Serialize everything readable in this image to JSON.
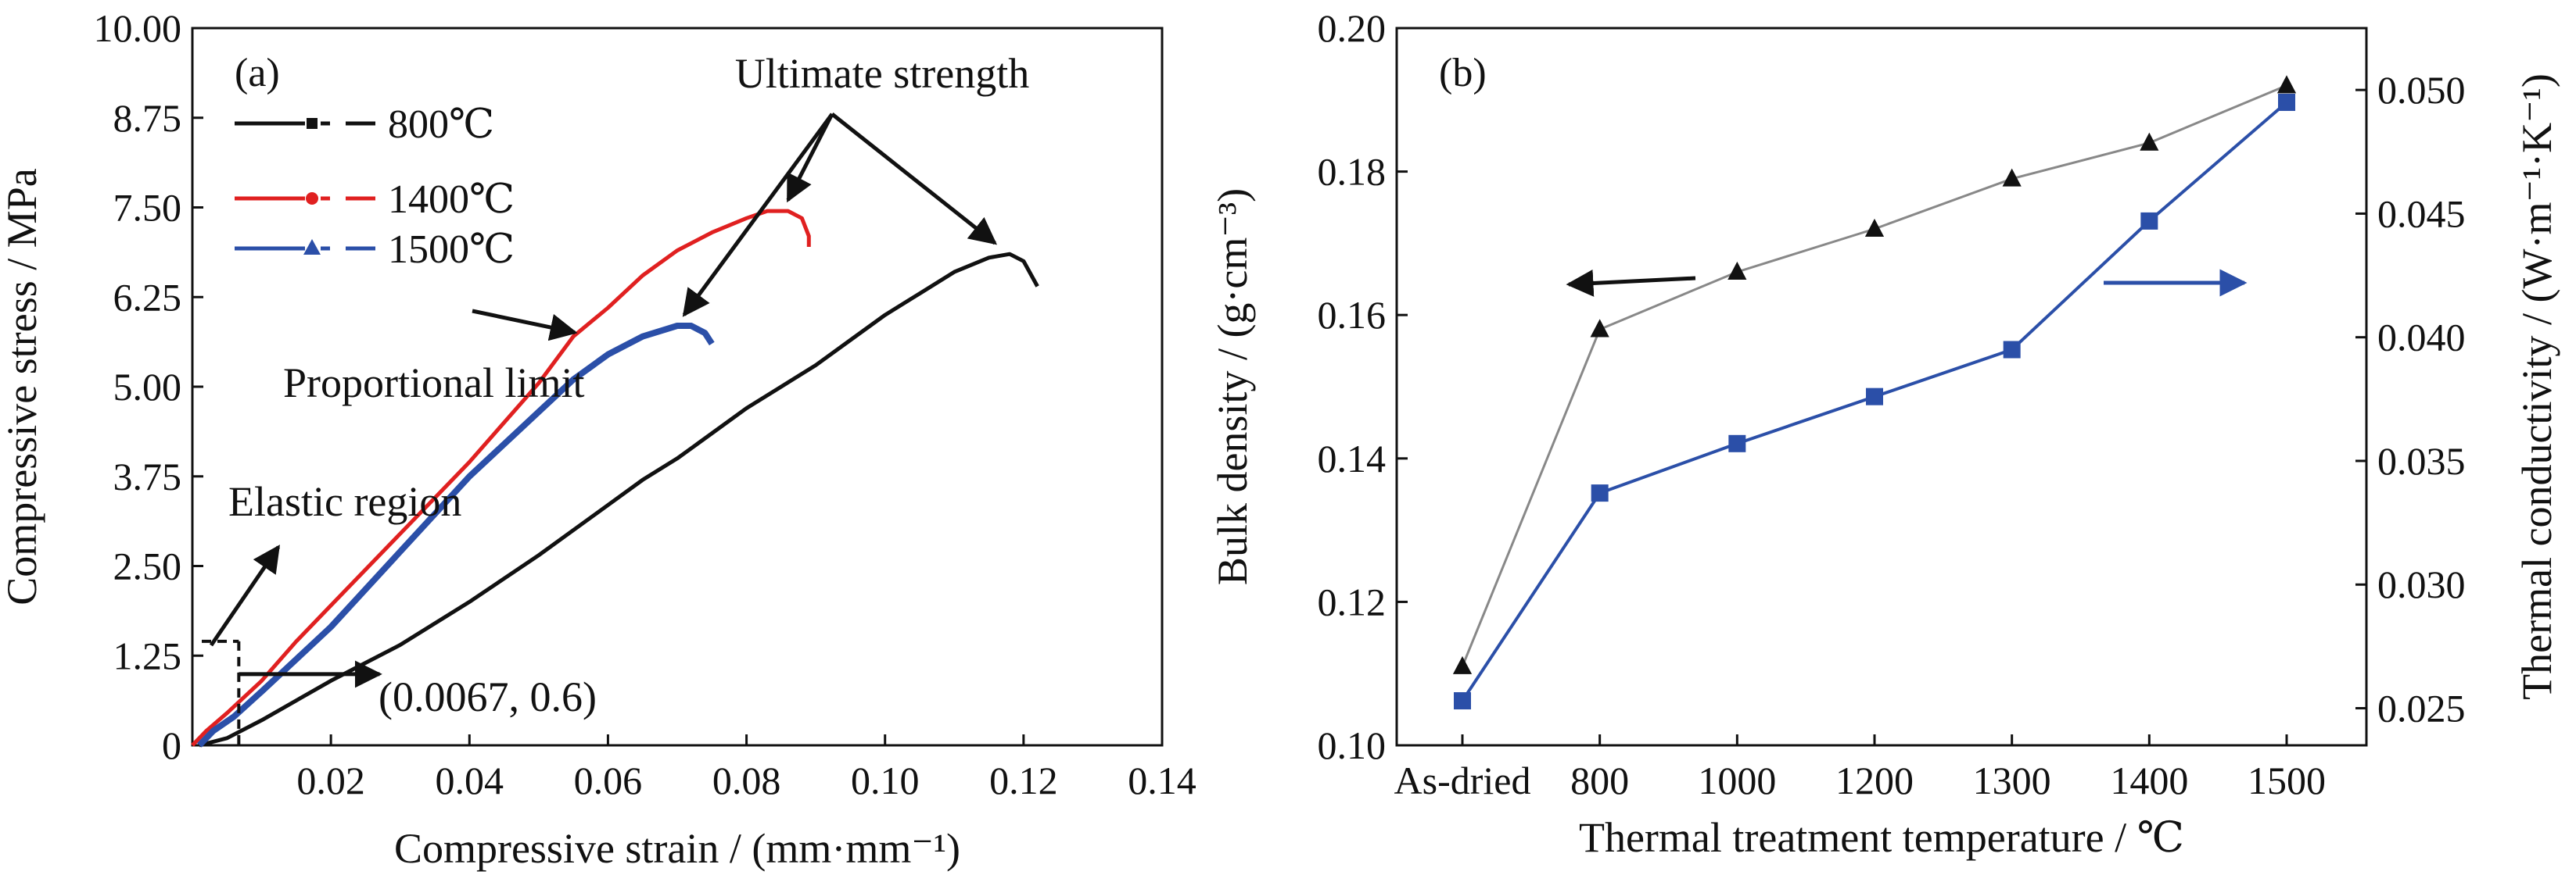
{
  "chart_data": [
    {
      "panel": "(a)",
      "type": "line",
      "xlabel": "Compressive strain / (mm·mm⁻¹)",
      "ylabel": "Compressive stress / MPa",
      "xlim": [
        0,
        0.14
      ],
      "ylim": [
        0,
        10
      ],
      "x_ticks": [
        "0.02",
        "0.04",
        "0.06",
        "0.08",
        "0.10",
        "0.12",
        "0.14"
      ],
      "y_ticks": [
        "0",
        "1.25",
        "2.50",
        "3.75",
        "5.00",
        "6.25",
        "7.50",
        "8.75",
        "10.00"
      ],
      "legend": "top-left",
      "series": [
        {
          "name": "800℃",
          "color": "#111111",
          "marker": "square",
          "x": [
            0.001,
            0.005,
            0.01,
            0.02,
            0.03,
            0.04,
            0.05,
            0.055,
            0.06,
            0.065,
            0.07,
            0.075,
            0.08,
            0.085,
            0.09,
            0.095,
            0.1,
            0.105,
            0.11,
            0.115,
            0.118,
            0.12,
            0.122
          ],
          "y": [
            0.0,
            0.1,
            0.35,
            0.9,
            1.4,
            2.0,
            2.65,
            3.0,
            3.35,
            3.7,
            4.0,
            4.35,
            4.7,
            5.0,
            5.3,
            5.65,
            6.0,
            6.3,
            6.6,
            6.8,
            6.85,
            6.75,
            6.4
          ]
        },
        {
          "name": "1400℃",
          "color": "#e02020",
          "marker": "circle",
          "x": [
            0.0,
            0.002,
            0.005,
            0.01,
            0.015,
            0.02,
            0.03,
            0.04,
            0.05,
            0.055,
            0.06,
            0.065,
            0.07,
            0.075,
            0.08,
            0.083,
            0.086,
            0.088,
            0.089,
            0.089
          ],
          "y": [
            0.0,
            0.2,
            0.45,
            0.9,
            1.45,
            1.95,
            2.95,
            3.95,
            5.05,
            5.7,
            6.1,
            6.55,
            6.9,
            7.15,
            7.35,
            7.45,
            7.45,
            7.35,
            7.1,
            6.95
          ]
        },
        {
          "name": "1500℃",
          "color": "#2b4fa8",
          "marker": "triangle",
          "x": [
            0.001,
            0.003,
            0.006,
            0.01,
            0.015,
            0.02,
            0.03,
            0.04,
            0.05,
            0.055,
            0.06,
            0.065,
            0.07,
            0.072,
            0.074,
            0.075
          ],
          "y": [
            0.0,
            0.2,
            0.4,
            0.75,
            1.2,
            1.65,
            2.7,
            3.75,
            4.65,
            5.1,
            5.45,
            5.7,
            5.85,
            5.85,
            5.75,
            5.6
          ]
        }
      ],
      "annotations": {
        "ultimate_strength": "Ultimate strength",
        "proportional_limit": "Proportional limit",
        "elastic_region": "Elastic region",
        "point_label": "(0.0067, 0.6)"
      },
      "annotation_points": {
        "ultimate_strength_targets": [
          [
            0.086,
            7.45
          ],
          [
            0.071,
            5.85
          ],
          [
            0.117,
            6.85
          ]
        ],
        "proportional_limit_target": [
          0.055,
          5.8
        ],
        "elastic_marker": [
          0.0067,
          1.45
        ],
        "point": [
          0.0067,
          0.6
        ]
      }
    },
    {
      "panel": "(b)",
      "type": "line",
      "xlabel": "Thermal treatment temperature / ℃",
      "ylabel": "Bulk density / (g·cm⁻³)",
      "y2label": "Thermal conductivity / (W·m⁻¹·K⁻¹)",
      "categories": [
        "As-dried",
        "800",
        "1000",
        "1200",
        "1300",
        "1400",
        "1500"
      ],
      "y_ticks": [
        "0.10",
        "0.12",
        "0.14",
        "0.16",
        "0.18",
        "0.20"
      ],
      "y2_ticks": [
        "0.025",
        "0.030",
        "0.035",
        "0.040",
        "0.045",
        "0.050"
      ],
      "ylim": [
        0.1,
        0.2
      ],
      "y2lim": [
        0.0235,
        0.0525
      ],
      "series": [
        {
          "color": "#888888",
          "marker_color": "#111111",
          "marker": "triangle",
          "axis": "left",
          "values": [
            0.111,
            0.158,
            0.166,
            0.172,
            0.179,
            0.184,
            0.192
          ]
        },
        {
          "color": "#2b4fa8",
          "marker": "square",
          "axis": "right",
          "values": [
            0.0253,
            0.0337,
            0.0357,
            0.0376,
            0.0395,
            0.0447,
            0.0495
          ]
        }
      ]
    }
  ]
}
